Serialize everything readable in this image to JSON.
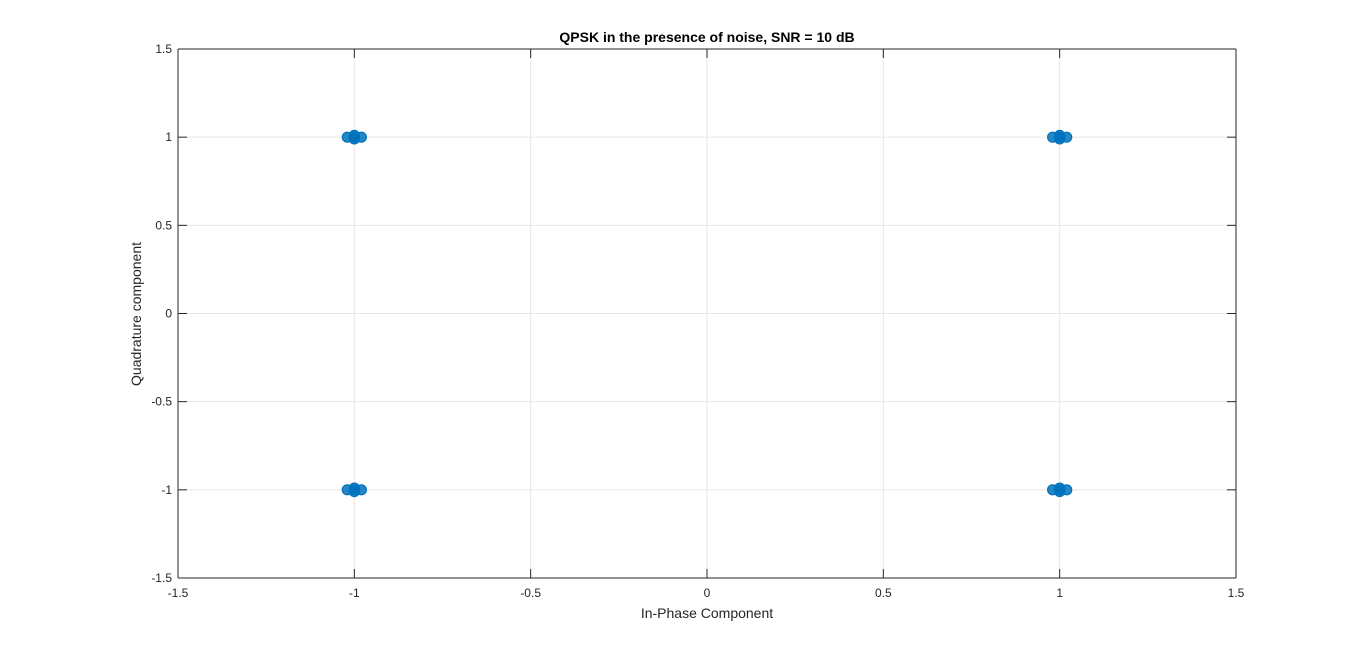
{
  "chart_data": {
    "type": "scatter",
    "title": "QPSK in the presence of noise, SNR = 10 dB",
    "xlabel": "In-Phase Component",
    "ylabel": "Quadrature component",
    "xlim": [
      -1.5,
      1.5
    ],
    "ylim": [
      -1.5,
      1.5
    ],
    "x_ticks": [
      "-1.5",
      "-1",
      "-0.5",
      "0",
      "0.5",
      "1",
      "1.5"
    ],
    "y_ticks": [
      "-1.5",
      "-1",
      "-0.5",
      "0",
      "0.5",
      "1",
      "1.5"
    ],
    "grid": true,
    "marker_color": "#0072bd",
    "series": [
      {
        "points": [
          {
            "x": -1.0,
            "y": 1.0
          },
          {
            "x": -1.02,
            "y": 1.0
          },
          {
            "x": -0.98,
            "y": 1.0
          },
          {
            "x": -1.0,
            "y": 1.01
          },
          {
            "x": -1.0,
            "y": 0.99
          },
          {
            "x": 1.0,
            "y": 1.0
          },
          {
            "x": 1.02,
            "y": 1.0
          },
          {
            "x": 0.98,
            "y": 1.0
          },
          {
            "x": 1.0,
            "y": 1.01
          },
          {
            "x": 1.0,
            "y": 0.99
          },
          {
            "x": -1.0,
            "y": -1.0
          },
          {
            "x": -1.02,
            "y": -1.0
          },
          {
            "x": -0.98,
            "y": -1.0
          },
          {
            "x": -1.0,
            "y": -0.99
          },
          {
            "x": -1.0,
            "y": -1.01
          },
          {
            "x": 1.0,
            "y": -1.0
          },
          {
            "x": 1.02,
            "y": -1.0
          },
          {
            "x": 0.98,
            "y": -1.0
          },
          {
            "x": 1.0,
            "y": -0.99
          },
          {
            "x": 1.0,
            "y": -1.01
          }
        ]
      }
    ]
  }
}
